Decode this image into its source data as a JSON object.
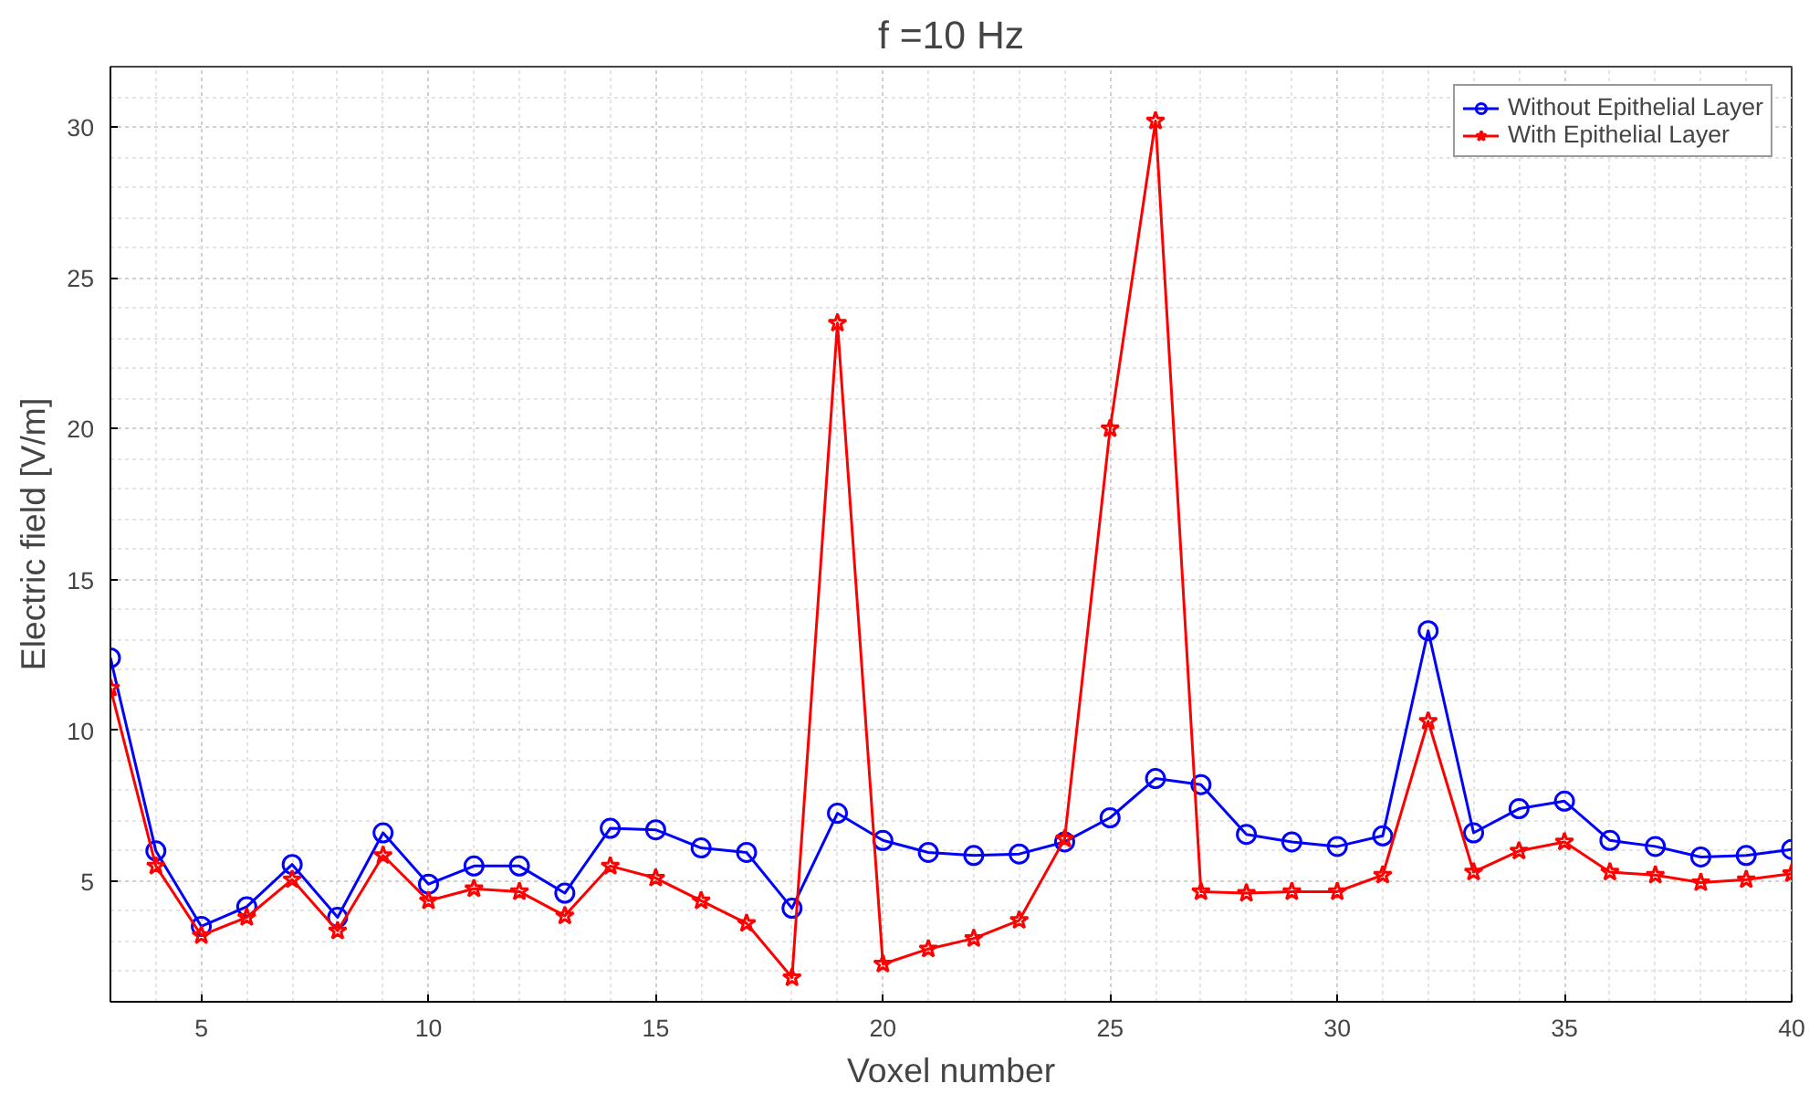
{
  "chart_data": {
    "type": "line",
    "title": "f =10 Hz",
    "xlabel": "Voxel number",
    "ylabel": "Electric field [V/m]",
    "x": [
      3,
      4,
      5,
      6,
      7,
      8,
      9,
      10,
      11,
      12,
      13,
      14,
      15,
      16,
      17,
      18,
      19,
      20,
      21,
      22,
      23,
      24,
      25,
      26,
      27,
      28,
      29,
      30,
      31,
      32,
      33,
      34,
      35,
      36,
      37,
      38,
      39,
      40
    ],
    "series": [
      {
        "name": "Without Epithelial Layer",
        "color": "#0000ff",
        "marker": "circle",
        "values": [
          12.4,
          6.0,
          3.5,
          4.15,
          5.55,
          3.8,
          6.6,
          4.9,
          5.5,
          5.5,
          4.6,
          6.75,
          6.7,
          6.1,
          5.95,
          4.1,
          7.25,
          6.35,
          5.95,
          5.85,
          5.9,
          6.3,
          7.1,
          8.4,
          8.2,
          6.55,
          6.3,
          6.15,
          6.5,
          13.3,
          6.6,
          7.4,
          7.65,
          6.35,
          6.15,
          5.8,
          5.85,
          6.05
        ]
      },
      {
        "name": "With Epithelial Layer",
        "color": "#ff0000",
        "marker": "star",
        "values": [
          11.4,
          5.5,
          3.2,
          3.8,
          5.05,
          3.35,
          5.85,
          4.35,
          4.75,
          4.65,
          3.85,
          5.5,
          5.1,
          4.35,
          3.6,
          1.8,
          23.5,
          2.25,
          2.75,
          3.1,
          3.7,
          6.4,
          20.0,
          30.2,
          4.65,
          4.6,
          4.65,
          4.65,
          5.2,
          10.3,
          5.3,
          6.0,
          6.3,
          5.3,
          5.2,
          4.95,
          5.05,
          5.25
        ]
      }
    ],
    "xlim": [
      3,
      40
    ],
    "xticks": [
      5,
      10,
      15,
      20,
      25,
      30,
      35,
      40
    ],
    "ylim": [
      1,
      32
    ],
    "yticks": [
      5,
      10,
      15,
      20,
      25,
      30
    ],
    "grid": true,
    "legend": "top right",
    "line_style": "solid"
  }
}
